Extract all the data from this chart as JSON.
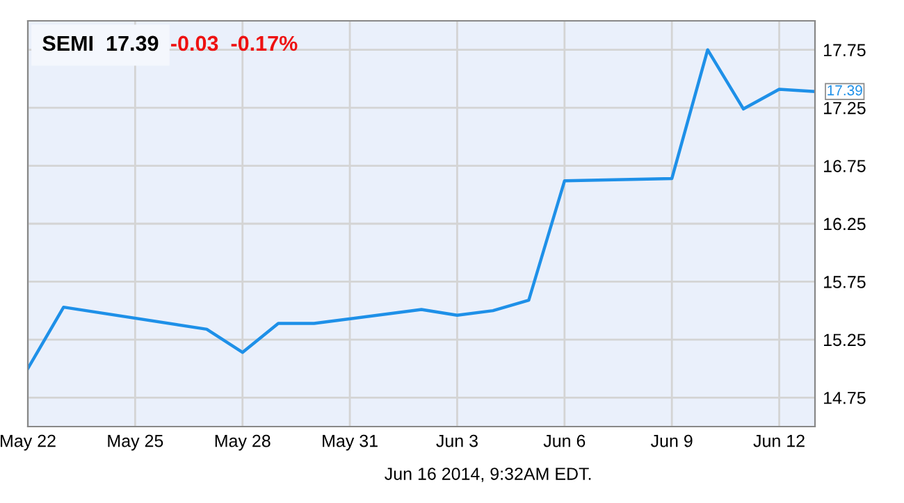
{
  "chart_data": {
    "type": "line",
    "title": "SEMI  17.39",
    "subtitle": "-0.03  -0.17%",
    "x": [
      "2014-05-22",
      "2014-05-23",
      "2014-05-27",
      "2014-05-28",
      "2014-05-29",
      "2014-05-30",
      "2014-06-02",
      "2014-06-03",
      "2014-06-04",
      "2014-06-05",
      "2014-06-06",
      "2014-06-09",
      "2014-06-10",
      "2014-06-11",
      "2014-06-12",
      "2014-06-13"
    ],
    "series": [
      {
        "color": "#1e90e8",
        "values": [
          15.0,
          15.53,
          15.34,
          15.14,
          15.39,
          15.39,
          15.51,
          15.46,
          15.5,
          15.59,
          16.62,
          16.64,
          17.75,
          17.24,
          17.41,
          17.39
        ]
      }
    ],
    "xlim": [
      "2014-05-22",
      "2014-06-13"
    ],
    "xticks": [
      {
        "value": "2014-05-22",
        "label": "May 22"
      },
      {
        "value": "2014-05-25",
        "label": "May 25"
      },
      {
        "value": "2014-05-28",
        "label": "May 28"
      },
      {
        "value": "2014-05-31",
        "label": "May 31"
      },
      {
        "value": "2014-06-03",
        "label": "Jun 3"
      },
      {
        "value": "2014-06-06",
        "label": "Jun 6"
      },
      {
        "value": "2014-06-09",
        "label": "Jun 9"
      },
      {
        "value": "2014-06-12",
        "label": "Jun 12"
      }
    ],
    "ylim": [
      14.5,
      18.0
    ],
    "yticks": [
      14.75,
      15.25,
      15.75,
      16.25,
      16.75,
      17.25,
      17.75
    ],
    "grid": true,
    "legend": false,
    "marker": "none",
    "line_style": "solid",
    "annotations": [
      {
        "text": "17.39",
        "x": "2014-06-13",
        "y": 17.39
      },
      "Jun 16 2014, 9:32AM EDT."
    ]
  }
}
